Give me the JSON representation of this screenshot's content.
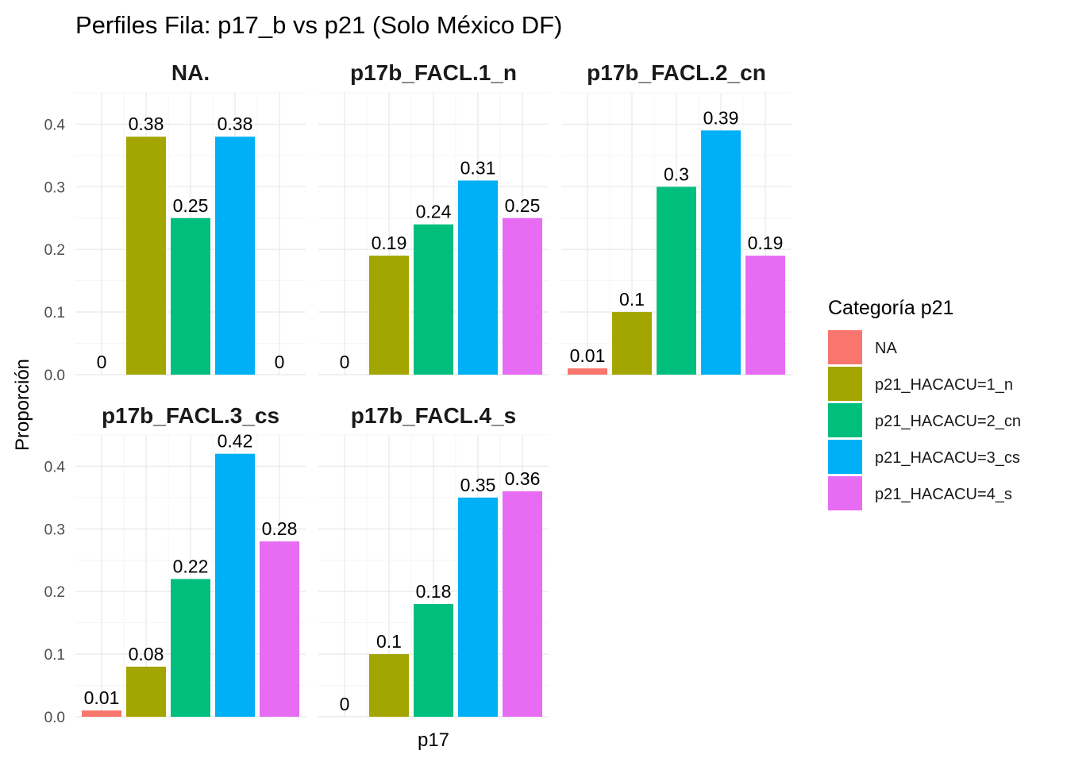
{
  "chart_data": {
    "type": "bar",
    "title": "Perfiles Fila: p17_b vs p21 (Solo México DF)",
    "xlabel": "p17",
    "ylabel": "Proporción",
    "ylim": [
      0,
      0.45
    ],
    "yticks": [
      "0.0",
      "0.1",
      "0.2",
      "0.3",
      "0.4"
    ],
    "grid": true,
    "legend": {
      "title": "Categoría p21",
      "position": "right",
      "entries": [
        {
          "name": "NA",
          "color": "#F8766D"
        },
        {
          "name": "p21_HACACU=1_n",
          "color": "#A3A500"
        },
        {
          "name": "p21_HACACU=2_cn",
          "color": "#00BF7D"
        },
        {
          "name": "p21_HACACU=3_cs",
          "color": "#00B0F6"
        },
        {
          "name": "p21_HACACU=4_s",
          "color": "#E76BF3"
        }
      ]
    },
    "panels": [
      {
        "name": "NA.",
        "values": [
          0,
          0.38,
          0.25,
          0.38,
          0
        ],
        "labels": [
          "0",
          "0.38",
          "0.25",
          "0.38",
          "0"
        ]
      },
      {
        "name": "p17b_FACL.1_n",
        "values": [
          0,
          0.19,
          0.24,
          0.31,
          0.25
        ],
        "labels": [
          "0",
          "0.19",
          "0.24",
          "0.31",
          "0.25"
        ]
      },
      {
        "name": "p17b_FACL.2_cn",
        "values": [
          0.01,
          0.1,
          0.3,
          0.39,
          0.19
        ],
        "labels": [
          "0.01",
          "0.1",
          "0.3",
          "0.39",
          "0.19"
        ]
      },
      {
        "name": "p17b_FACL.3_cs",
        "values": [
          0.01,
          0.08,
          0.22,
          0.42,
          0.28
        ],
        "labels": [
          "0.01",
          "0.08",
          "0.22",
          "0.42",
          "0.28"
        ]
      },
      {
        "name": "p17b_FACL.4_s",
        "values": [
          0,
          0.1,
          0.18,
          0.35,
          0.36
        ],
        "labels": [
          "0",
          "0.1",
          "0.18",
          "0.35",
          "0.36"
        ]
      }
    ]
  }
}
